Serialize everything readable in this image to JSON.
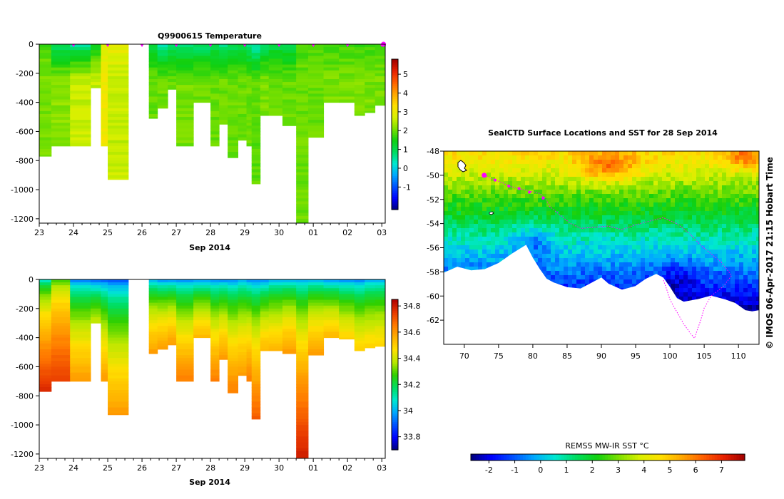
{
  "colors": {
    "temp_ramp": [
      "#00007a",
      "#0000ff",
      "#0050ff",
      "#00a8ff",
      "#00e8d0",
      "#00dd60",
      "#10d010",
      "#7be000",
      "#d8f000",
      "#ffe000",
      "#ffa800",
      "#ff6000",
      "#e82000",
      "#a00000"
    ],
    "salt_ramp": [
      "#00007a",
      "#0000ff",
      "#0050ff",
      "#00a8ff",
      "#00e8d0",
      "#00dd60",
      "#30d000",
      "#b8e800",
      "#ffe000",
      "#ffb000",
      "#ff7800",
      "#e83800",
      "#b00000"
    ],
    "land": "#ffffff",
    "track": "#ff00ff",
    "frame": "#000000"
  },
  "chart_data": [
    {
      "type": "heatmap",
      "id": "temperature_section",
      "title": "Q9900615  Temperature",
      "xlabel": "Sep 2014",
      "xticks": [
        23,
        24,
        25,
        26,
        27,
        28,
        29,
        30,
        1,
        2,
        3
      ],
      "xlim": [
        23,
        33.1
      ],
      "ylim": [
        -1230,
        0
      ],
      "yticks": [
        0,
        -200,
        -400,
        -600,
        -800,
        -1000,
        -1200
      ],
      "colorbar": {
        "range": [
          -2.2,
          5.8
        ],
        "ticks": [
          -1,
          0,
          1,
          2,
          3,
          4,
          5
        ]
      },
      "profile_markers": [
        24,
        25,
        26,
        27,
        28,
        29,
        30,
        31,
        32,
        33
      ],
      "profiles": [
        {
          "start": 23.0,
          "end": 23.35,
          "depth": 770,
          "top": 1.8,
          "deep": 2.1
        },
        {
          "start": 23.35,
          "end": 23.9,
          "depth": 700,
          "top": 0.8,
          "deep": 2.2
        },
        {
          "start": 23.9,
          "end": 24.5,
          "depth": 700,
          "top": 0.5,
          "deep": 2.6
        },
        {
          "start": 24.5,
          "end": 24.8,
          "depth": 300,
          "top": 1.3,
          "deep": 2.6
        },
        {
          "start": 24.8,
          "end": 25.0,
          "depth": 700,
          "top": 2.8,
          "deep": 3.1
        },
        {
          "start": 25.0,
          "end": 25.6,
          "depth": 930,
          "top": 3.0,
          "deep": 2.6
        },
        {
          "start": 26.2,
          "end": 26.45,
          "depth": 510,
          "top": 1.1,
          "deep": 2.0
        },
        {
          "start": 26.45,
          "end": 26.75,
          "depth": 440,
          "top": 0.4,
          "deep": 2.0
        },
        {
          "start": 26.75,
          "end": 27.0,
          "depth": 310,
          "top": 0.8,
          "deep": 2.0
        },
        {
          "start": 27.0,
          "end": 27.5,
          "depth": 700,
          "top": 0.6,
          "deep": 2.1
        },
        {
          "start": 27.5,
          "end": 28.0,
          "depth": 400,
          "top": 0.7,
          "deep": 2.0
        },
        {
          "start": 28.0,
          "end": 28.25,
          "depth": 700,
          "top": 0.9,
          "deep": 2.0
        },
        {
          "start": 28.25,
          "end": 28.5,
          "depth": 550,
          "top": 0.6,
          "deep": 2.0
        },
        {
          "start": 28.5,
          "end": 28.8,
          "depth": 780,
          "top": 0.8,
          "deep": 2.0
        },
        {
          "start": 28.8,
          "end": 29.05,
          "depth": 660,
          "top": 1.0,
          "deep": 2.0
        },
        {
          "start": 29.05,
          "end": 29.2,
          "depth": 700,
          "top": 0.6,
          "deep": 2.0
        },
        {
          "start": 29.2,
          "end": 29.45,
          "depth": 960,
          "top": 0.3,
          "deep": 1.9
        },
        {
          "start": 29.45,
          "end": 29.7,
          "depth": 490,
          "top": 0.8,
          "deep": 2.1
        },
        {
          "start": 29.7,
          "end": 30.1,
          "depth": 490,
          "top": 1.0,
          "deep": 2.0
        },
        {
          "start": 30.1,
          "end": 30.5,
          "depth": 560,
          "top": 1.0,
          "deep": 2.0
        },
        {
          "start": 30.5,
          "end": 30.85,
          "depth": 1230,
          "top": 1.8,
          "deep": 2.0
        },
        {
          "start": 30.85,
          "end": 31.3,
          "depth": 640,
          "top": 1.8,
          "deep": 2.0
        },
        {
          "start": 31.3,
          "end": 31.75,
          "depth": 400,
          "top": 1.7,
          "deep": 2.1
        },
        {
          "start": 31.75,
          "end": 32.2,
          "depth": 400,
          "top": 1.7,
          "deep": 2.1
        },
        {
          "start": 32.2,
          "end": 32.5,
          "depth": 490,
          "top": 1.7,
          "deep": 2.1
        },
        {
          "start": 32.5,
          "end": 32.8,
          "depth": 470,
          "top": 1.7,
          "deep": 2.1
        },
        {
          "start": 32.8,
          "end": 33.1,
          "depth": 420,
          "top": 1.7,
          "deep": 2.1
        }
      ]
    },
    {
      "type": "heatmap",
      "id": "salinity_section",
      "title": "",
      "xlabel": "Sep 2014",
      "xticks": [
        23,
        24,
        25,
        26,
        27,
        28,
        29,
        30,
        1,
        2,
        3
      ],
      "xlim": [
        23,
        33.1
      ],
      "ylim": [
        -1230,
        0
      ],
      "yticks": [
        0,
        -200,
        -400,
        -600,
        -800,
        -1000,
        -1200
      ],
      "colorbar": {
        "range": [
          33.7,
          34.85
        ],
        "ticks": [
          33.8,
          34,
          34.2,
          34.4,
          34.6,
          34.8
        ]
      },
      "profiles": [
        {
          "start": 23.0,
          "end": 23.35,
          "depth": 770,
          "top": 34.0,
          "deep": 34.78
        },
        {
          "start": 23.35,
          "end": 23.9,
          "depth": 700,
          "top": 34.2,
          "deep": 34.75
        },
        {
          "start": 23.9,
          "end": 24.5,
          "depth": 700,
          "top": 33.85,
          "deep": 34.6
        },
        {
          "start": 24.5,
          "end": 24.8,
          "depth": 300,
          "top": 33.8,
          "deep": 34.4
        },
        {
          "start": 24.8,
          "end": 25.0,
          "depth": 700,
          "top": 33.8,
          "deep": 34.6
        },
        {
          "start": 25.0,
          "end": 25.6,
          "depth": 930,
          "top": 33.8,
          "deep": 34.6
        },
        {
          "start": 26.2,
          "end": 26.45,
          "depth": 510,
          "top": 33.9,
          "deep": 34.6
        },
        {
          "start": 26.45,
          "end": 26.75,
          "depth": 480,
          "top": 33.85,
          "deep": 34.6
        },
        {
          "start": 26.75,
          "end": 27.0,
          "depth": 450,
          "top": 33.85,
          "deep": 34.6
        },
        {
          "start": 27.0,
          "end": 27.5,
          "depth": 700,
          "top": 33.85,
          "deep": 34.65
        },
        {
          "start": 27.5,
          "end": 28.0,
          "depth": 400,
          "top": 33.85,
          "deep": 34.55
        },
        {
          "start": 28.0,
          "end": 28.25,
          "depth": 700,
          "top": 33.85,
          "deep": 34.65
        },
        {
          "start": 28.25,
          "end": 28.5,
          "depth": 550,
          "top": 33.85,
          "deep": 34.6
        },
        {
          "start": 28.5,
          "end": 28.8,
          "depth": 780,
          "top": 33.85,
          "deep": 34.65
        },
        {
          "start": 28.8,
          "end": 29.05,
          "depth": 660,
          "top": 33.9,
          "deep": 34.6
        },
        {
          "start": 29.05,
          "end": 29.2,
          "depth": 700,
          "top": 33.85,
          "deep": 34.65
        },
        {
          "start": 29.2,
          "end": 29.45,
          "depth": 960,
          "top": 33.85,
          "deep": 34.7
        },
        {
          "start": 29.45,
          "end": 29.7,
          "depth": 490,
          "top": 33.85,
          "deep": 34.55
        },
        {
          "start": 29.7,
          "end": 30.1,
          "depth": 490,
          "top": 33.9,
          "deep": 34.55
        },
        {
          "start": 30.1,
          "end": 30.5,
          "depth": 510,
          "top": 33.9,
          "deep": 34.6
        },
        {
          "start": 30.5,
          "end": 30.85,
          "depth": 1230,
          "top": 33.9,
          "deep": 34.8
        },
        {
          "start": 30.85,
          "end": 31.3,
          "depth": 520,
          "top": 33.9,
          "deep": 34.6
        },
        {
          "start": 31.3,
          "end": 31.75,
          "depth": 400,
          "top": 33.85,
          "deep": 34.55
        },
        {
          "start": 31.75,
          "end": 32.2,
          "depth": 410,
          "top": 33.85,
          "deep": 34.5
        },
        {
          "start": 32.2,
          "end": 32.5,
          "depth": 490,
          "top": 33.85,
          "deep": 34.5
        },
        {
          "start": 32.5,
          "end": 32.8,
          "depth": 470,
          "top": 33.9,
          "deep": 34.5
        },
        {
          "start": 32.8,
          "end": 33.1,
          "depth": 460,
          "top": 33.9,
          "deep": 34.5
        }
      ]
    },
    {
      "type": "heatmap",
      "id": "sst_map",
      "title": "SealCTD Surface Locations and SST for 28 Sep 2014",
      "xlim": [
        67,
        113
      ],
      "ylim": [
        -64,
        -48
      ],
      "xticks": [
        70,
        75,
        80,
        85,
        90,
        95,
        100,
        105,
        110
      ],
      "yticks": [
        -48,
        -50,
        -52,
        -54,
        -56,
        -58,
        -60,
        -62
      ],
      "colorbar": {
        "label": "REMSS MW-IR SST °C",
        "range": [
          -2.7,
          7.9
        ],
        "ticks": [
          -2,
          -1,
          0,
          1,
          2,
          3,
          4,
          5,
          6,
          7
        ]
      },
      "coast": [
        [
          67,
          -58.1
        ],
        [
          69,
          -57.6
        ],
        [
          71,
          -57.9
        ],
        [
          73,
          -57.8
        ],
        [
          75,
          -57.3
        ],
        [
          77,
          -56.5
        ],
        [
          79,
          -55.8
        ],
        [
          79.9,
          -56.8
        ],
        [
          81,
          -57.8
        ],
        [
          82,
          -58.6
        ],
        [
          83,
          -58.9
        ],
        [
          85,
          -59.3
        ],
        [
          87,
          -59.4
        ],
        [
          89,
          -58.8
        ],
        [
          90,
          -58.5
        ],
        [
          91,
          -59.0
        ],
        [
          93,
          -59.5
        ],
        [
          95,
          -59.2
        ],
        [
          96.5,
          -58.6
        ],
        [
          98,
          -58.2
        ],
        [
          99,
          -58.5
        ],
        [
          100,
          -59.3
        ],
        [
          101,
          -60.2
        ],
        [
          102,
          -60.5
        ],
        [
          104,
          -60.3
        ],
        [
          106,
          -60.0
        ],
        [
          108,
          -60.3
        ],
        [
          109.5,
          -60.6
        ],
        [
          111,
          -61.2
        ],
        [
          112,
          -61.3
        ],
        [
          113,
          -61.2
        ]
      ],
      "track": [
        [
          72.9,
          -50.0
        ],
        [
          74,
          -50.3
        ],
        [
          75.5,
          -50.6
        ],
        [
          76.5,
          -50.9
        ],
        [
          78,
          -51.1
        ],
        [
          79.5,
          -51.3
        ],
        [
          81,
          -51.5
        ],
        [
          81.8,
          -51.9
        ],
        [
          82.5,
          -52.6
        ],
        [
          84,
          -53.3
        ],
        [
          85.5,
          -54.0
        ],
        [
          87,
          -54.4
        ],
        [
          89,
          -54.3
        ],
        [
          91,
          -54.2
        ],
        [
          93,
          -54.5
        ],
        [
          95,
          -54.1
        ],
        [
          97,
          -53.8
        ],
        [
          99,
          -53.5
        ],
        [
          101,
          -54.0
        ],
        [
          103,
          -54.9
        ],
        [
          104.5,
          -55.8
        ],
        [
          106,
          -56.5
        ],
        [
          107.5,
          -57.2
        ],
        [
          109,
          -58.3
        ],
        [
          107.8,
          -59.2
        ],
        [
          106,
          -60.0
        ],
        [
          105,
          -61.0
        ],
        [
          104.5,
          -62.0
        ],
        [
          104.0,
          -62.8
        ],
        [
          103.6,
          -63.5
        ],
        [
          103,
          -63.1
        ],
        [
          102,
          -62.3
        ],
        [
          101,
          -61.3
        ],
        [
          100,
          -60.3
        ],
        [
          99.5,
          -59.4
        ],
        [
          99,
          -58.6
        ]
      ],
      "track_points": [
        [
          72.9,
          -50.0
        ],
        [
          74.5,
          -50.4
        ],
        [
          76.5,
          -50.9
        ],
        [
          78,
          -51.1
        ],
        [
          79.5,
          -51.4
        ],
        [
          81.5,
          -51.9
        ]
      ]
    }
  ],
  "credit": "© IMOS 06-Apr-2017 21:15 Hobart Time"
}
